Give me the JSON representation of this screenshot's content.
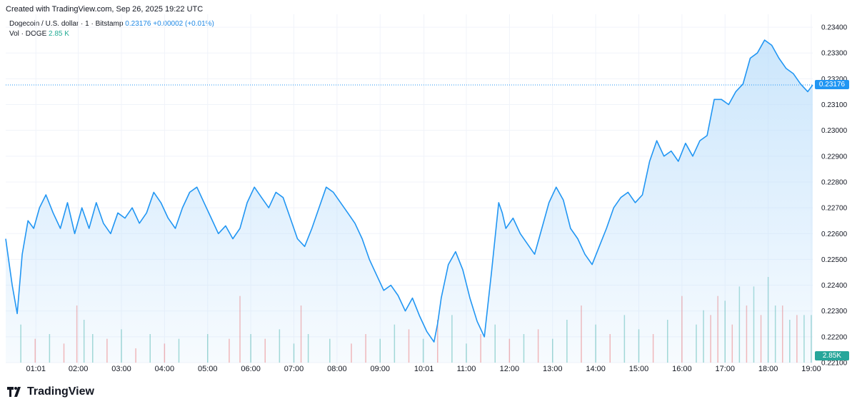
{
  "header": {
    "created": "Created with TradingView.com, Sep 26, 2025 19:22 UTC"
  },
  "legend": {
    "symbol": "Dogecoin / U.S. dollar · 1 · Bitstamp",
    "price": "0.23176",
    "change": "+0.00002 (+0.01%)",
    "vol_label": "Vol · DOGE",
    "vol_value": "2.85 K"
  },
  "brand": {
    "name": "TradingView"
  },
  "colors": {
    "line": "#2196f3",
    "fill_top": "#bbdefb",
    "up_volume": "#26a69a",
    "down_volume": "#ef5350",
    "grid": "#f0f3fa",
    "axis_text": "#131722"
  },
  "chart_data": {
    "type": "area",
    "symbol": "DOGE/USD",
    "last_price": 0.23176,
    "last_price_label": "0.23176",
    "volume_last_label": "2.85K",
    "ylim": [
      0.221,
      0.2345
    ],
    "y_ticks": [
      "0.23400",
      "0.23300",
      "0.23200",
      "0.23100",
      "0.23000",
      "0.22900",
      "0.22800",
      "0.22700",
      "0.22600",
      "0.22500",
      "0.22400",
      "0.22300",
      "0.22200",
      "0.22100"
    ],
    "x_ticks": [
      "01:01",
      "02:00",
      "03:00",
      "04:00",
      "05:00",
      "06:00",
      "07:00",
      "08:00",
      "09:00",
      "10:01",
      "11:00",
      "12:00",
      "13:00",
      "14:00",
      "15:00",
      "16:00",
      "17:00",
      "18:00",
      "19:00"
    ],
    "x_tick_minutes": [
      61,
      120,
      180,
      240,
      300,
      360,
      420,
      480,
      540,
      601,
      660,
      720,
      780,
      840,
      900,
      960,
      1020,
      1080,
      1140
    ],
    "xlim_minutes": [
      19,
      1142
    ],
    "series": [
      {
        "x_minutes": [
          19,
          23,
          28,
          35,
          42,
          50,
          58,
          66,
          75,
          85,
          95,
          105,
          115,
          125,
          135,
          145,
          155,
          165,
          175,
          185,
          195,
          205,
          215,
          225,
          235,
          245,
          255,
          265,
          275,
          285,
          295,
          305,
          315,
          325,
          335,
          345,
          355,
          365,
          375,
          385,
          395,
          405,
          415,
          425,
          435,
          445,
          455,
          465,
          475,
          485,
          495,
          505,
          515,
          525,
          535,
          545,
          555,
          565,
          575,
          585,
          595,
          605,
          615,
          620,
          625,
          635,
          645,
          655,
          665,
          675,
          685,
          695,
          705,
          710,
          715,
          725,
          735,
          745,
          755,
          765,
          775,
          785,
          795,
          805,
          815,
          825,
          835,
          845,
          855,
          865,
          875,
          885,
          895,
          905,
          915,
          925,
          935,
          945,
          955,
          965,
          975,
          985,
          995,
          1005,
          1015,
          1025,
          1035,
          1045,
          1055,
          1065,
          1075,
          1085,
          1095,
          1105,
          1115,
          1125,
          1135,
          1142
        ],
        "price": [
          0.2258,
          0.225,
          0.224,
          0.2229,
          0.2252,
          0.2265,
          0.2262,
          0.227,
          0.2275,
          0.2268,
          0.2262,
          0.2272,
          0.226,
          0.227,
          0.2262,
          0.2272,
          0.2264,
          0.226,
          0.2268,
          0.2266,
          0.227,
          0.2264,
          0.2268,
          0.2276,
          0.2272,
          0.2266,
          0.2262,
          0.227,
          0.2276,
          0.2278,
          0.2272,
          0.2266,
          0.226,
          0.2263,
          0.2258,
          0.2262,
          0.2272,
          0.2278,
          0.2274,
          0.227,
          0.2276,
          0.2274,
          0.2266,
          0.2258,
          0.2255,
          0.2262,
          0.227,
          0.2278,
          0.2276,
          0.2272,
          0.2268,
          0.2264,
          0.2258,
          0.225,
          0.2244,
          0.2238,
          0.224,
          0.2236,
          0.223,
          0.2235,
          0.2228,
          0.2222,
          0.2218,
          0.2225,
          0.2235,
          0.2248,
          0.2253,
          0.2246,
          0.2235,
          0.2226,
          0.222,
          0.2245,
          0.2272,
          0.2268,
          0.2262,
          0.2266,
          0.226,
          0.2256,
          0.2252,
          0.2262,
          0.2272,
          0.2278,
          0.2273,
          0.2262,
          0.2258,
          0.2252,
          0.2248,
          0.2255,
          0.2262,
          0.227,
          0.2274,
          0.2276,
          0.2272,
          0.2275,
          0.2288,
          0.2296,
          0.229,
          0.2292,
          0.2288,
          0.2295,
          0.229,
          0.2296,
          0.2298,
          0.2312,
          0.2312,
          0.231,
          0.2315,
          0.2318,
          0.2328,
          0.233,
          0.2335,
          0.2333,
          0.2328,
          0.2324,
          0.2322,
          0.2318,
          0.2315,
          0.23176
        ]
      }
    ],
    "volume_x_minutes": [
      40,
      60,
      80,
      100,
      118,
      128,
      140,
      160,
      180,
      200,
      220,
      240,
      260,
      300,
      330,
      345,
      360,
      380,
      400,
      420,
      430,
      440,
      470,
      500,
      520,
      540,
      560,
      580,
      600,
      620,
      640,
      660,
      680,
      700,
      720,
      740,
      760,
      780,
      800,
      820,
      840,
      860,
      880,
      900,
      920,
      940,
      960,
      980,
      990,
      1000,
      1010,
      1020,
      1030,
      1040,
      1050,
      1060,
      1070,
      1080,
      1090,
      1100,
      1110,
      1120,
      1130,
      1140
    ],
    "volume": [
      8,
      5,
      6,
      4,
      12,
      9,
      6,
      5,
      7,
      3,
      6,
      4,
      5,
      6,
      5,
      14,
      6,
      5,
      7,
      4,
      12,
      6,
      5,
      4,
      6,
      5,
      8,
      7,
      5,
      9,
      10,
      4,
      6,
      8,
      5,
      6,
      7,
      5,
      9,
      12,
      8,
      6,
      10,
      7,
      6,
      9,
      14,
      8,
      11,
      10,
      14,
      13,
      8,
      16,
      12,
      16,
      10,
      18,
      12,
      12,
      9,
      10,
      10,
      10
    ],
    "volume_up": [
      true,
      false,
      true,
      false,
      false,
      true,
      true,
      false,
      true,
      false,
      true,
      false,
      true,
      true,
      false,
      false,
      true,
      false,
      true,
      true,
      false,
      true,
      true,
      false,
      false,
      true,
      true,
      false,
      true,
      false,
      true,
      true,
      false,
      true,
      false,
      true,
      false,
      true,
      true,
      false,
      true,
      false,
      true,
      true,
      false,
      true,
      false,
      true,
      true,
      false,
      false,
      true,
      false,
      true,
      false,
      true,
      false,
      true,
      true,
      false,
      true,
      false,
      true,
      true
    ]
  }
}
